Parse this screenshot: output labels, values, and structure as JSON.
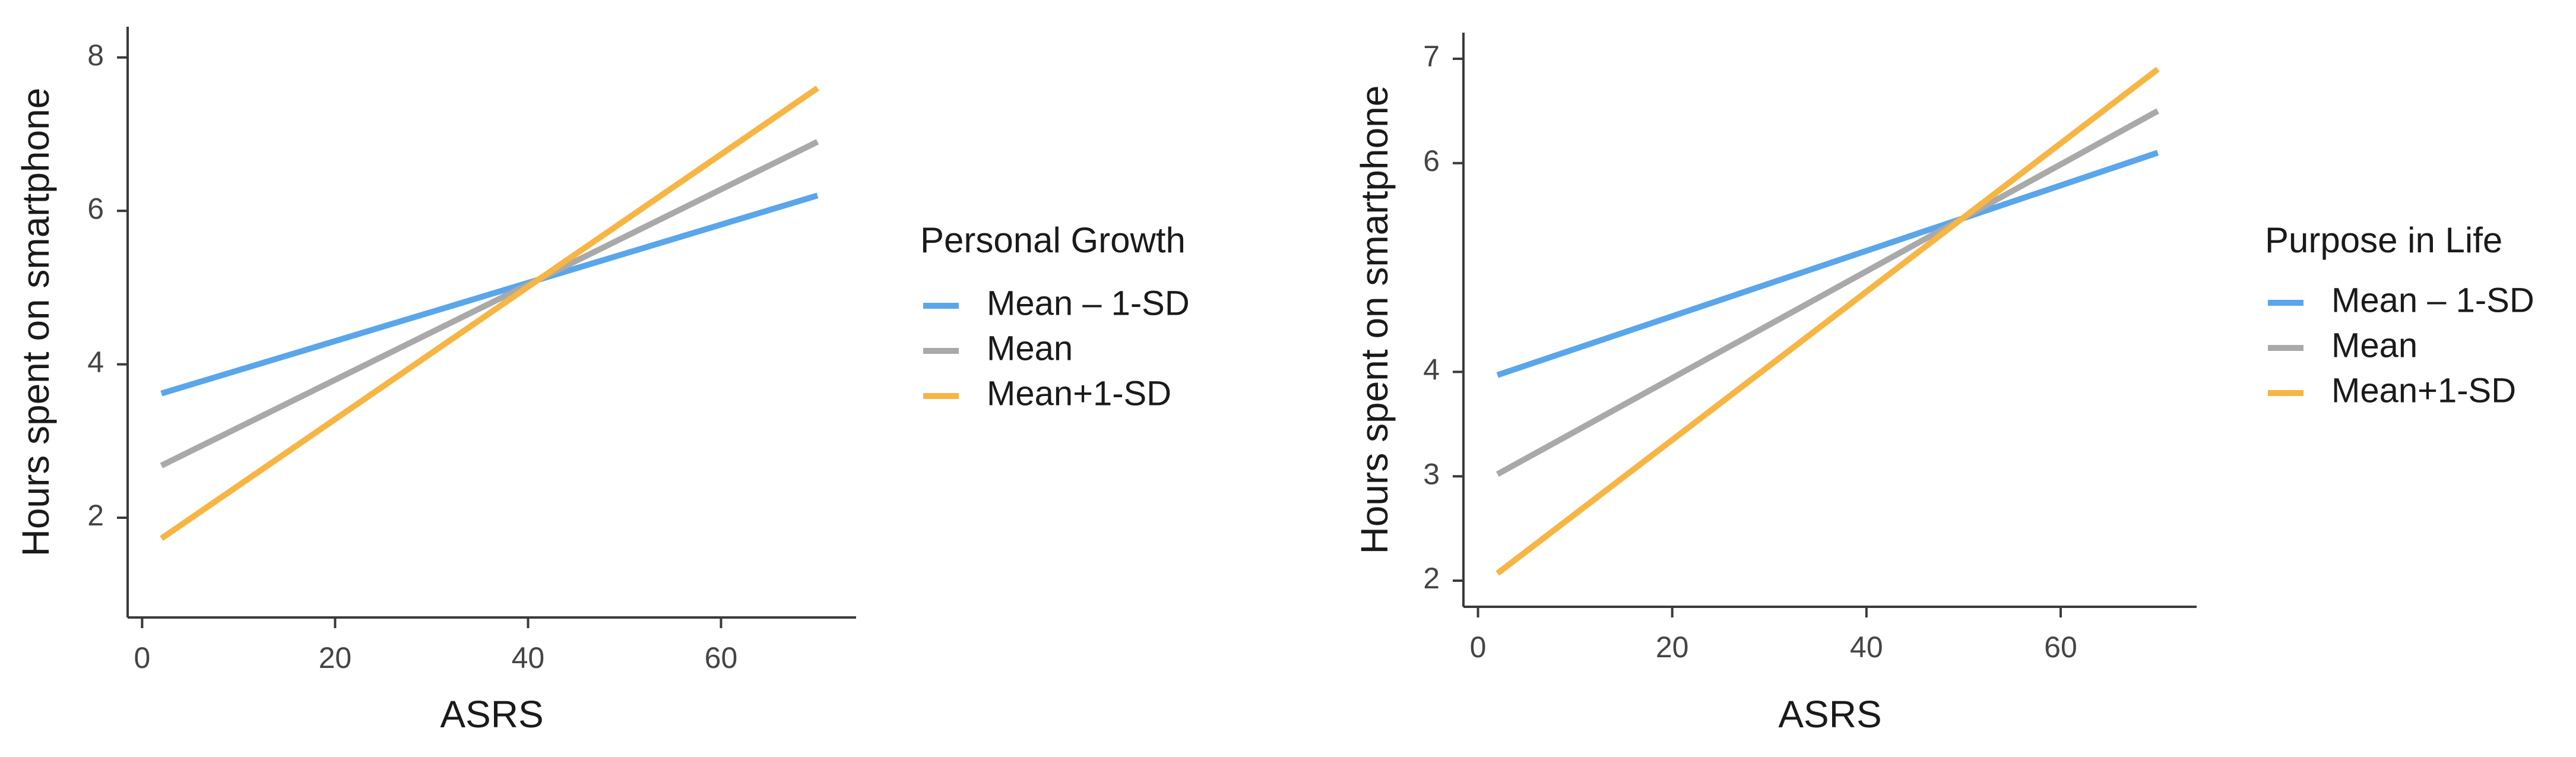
{
  "colors": {
    "low": "#5aa6ea",
    "mean": "#a9a9a9",
    "high": "#f7b543",
    "axis": "#3a3a3a"
  },
  "chart_data": [
    {
      "type": "line",
      "xlabel": "ASRS",
      "ylabel": "Hours spent on smartphone",
      "xlim": [
        -1.5,
        74
      ],
      "ylim": [
        0.7,
        8.4
      ],
      "xticks": [
        0,
        20,
        40,
        60
      ],
      "yticks": [
        2,
        4,
        6,
        8
      ],
      "legend_title": "Personal Growth",
      "legend_position": "right",
      "series": [
        {
          "name": "Mean – 1-SD",
          "color_key": "low",
          "x": [
            2,
            70
          ],
          "y": [
            3.62,
            6.2
          ]
        },
        {
          "name": "Mean",
          "color_key": "mean",
          "x": [
            2,
            70
          ],
          "y": [
            2.68,
            6.9
          ]
        },
        {
          "name": "Mean+1-SD",
          "color_key": "high",
          "x": [
            2,
            70
          ],
          "y": [
            1.73,
            7.6
          ]
        }
      ]
    },
    {
      "type": "line",
      "xlabel": "ASRS",
      "ylabel": "Hours spent on smartphone",
      "xlim": [
        -1.5,
        74
      ],
      "ylim": [
        1.75,
        7.25
      ],
      "xticks": [
        0,
        20,
        40,
        60
      ],
      "yticks": [
        2,
        3,
        4,
        6,
        7
      ],
      "legend_title": "Purpose in Life",
      "legend_position": "right",
      "series": [
        {
          "name": "Mean – 1-SD",
          "color_key": "low",
          "x": [
            2,
            70
          ],
          "y": [
            3.97,
            6.1
          ]
        },
        {
          "name": "Mean",
          "color_key": "mean",
          "x": [
            2,
            70
          ],
          "y": [
            3.02,
            6.5
          ]
        },
        {
          "name": "Mean+1-SD",
          "color_key": "high",
          "x": [
            2,
            70
          ],
          "y": [
            2.07,
            6.9
          ]
        }
      ]
    }
  ]
}
